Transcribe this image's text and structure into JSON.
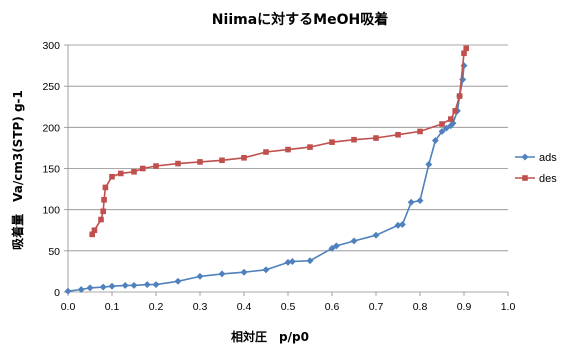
{
  "chart_data": {
    "type": "scatter",
    "title": "Niimaに対するMeOH吸着",
    "xlabel": "相対圧　p/p0",
    "ylabel": "吸着量　Va/cm3(STP) g-1",
    "xlim": [
      0,
      1.0
    ],
    "ylim": [
      0,
      300
    ],
    "x_ticks": [
      "0.0",
      "0.1",
      "0.2",
      "0.3",
      "0.4",
      "0.5",
      "0.6",
      "0.7",
      "0.8",
      "0.9",
      "1.0"
    ],
    "x_tick_values": [
      0,
      0.1,
      0.2,
      0.3,
      0.4,
      0.5,
      0.6,
      0.7,
      0.8,
      0.9,
      1.0
    ],
    "y_ticks": [
      "0",
      "50",
      "100",
      "150",
      "200",
      "250",
      "300"
    ],
    "y_tick_values": [
      0,
      50,
      100,
      150,
      200,
      250,
      300
    ],
    "grid": "horizontal",
    "legend_position": "right",
    "series": [
      {
        "name": "ads",
        "color": "#4f81bd",
        "marker": "diamond",
        "x": [
          0.0,
          0.03,
          0.05,
          0.08,
          0.1,
          0.13,
          0.15,
          0.18,
          0.2,
          0.25,
          0.3,
          0.35,
          0.4,
          0.45,
          0.5,
          0.51,
          0.55,
          0.6,
          0.61,
          0.65,
          0.7,
          0.75,
          0.76,
          0.78,
          0.8,
          0.82,
          0.835,
          0.85,
          0.86,
          0.87,
          0.875,
          0.885,
          0.89,
          0.897,
          0.9
        ],
        "y": [
          1,
          3,
          5,
          6,
          7,
          8,
          8,
          9,
          9,
          13,
          19,
          22,
          24,
          27,
          36,
          37,
          38,
          53,
          56,
          62,
          69,
          81,
          82,
          109,
          111,
          155,
          184,
          195,
          199,
          202,
          205,
          220,
          238,
          258,
          275
        ]
      },
      {
        "name": "des",
        "color": "#c0504d",
        "marker": "square",
        "x": [
          0.055,
          0.06,
          0.075,
          0.08,
          0.082,
          0.085,
          0.1,
          0.12,
          0.15,
          0.17,
          0.2,
          0.25,
          0.3,
          0.35,
          0.4,
          0.45,
          0.5,
          0.55,
          0.6,
          0.65,
          0.7,
          0.75,
          0.8,
          0.85,
          0.87,
          0.88,
          0.89,
          0.9,
          0.905
        ],
        "y": [
          70,
          75,
          88,
          98,
          112,
          127,
          140,
          144,
          146,
          150,
          153,
          156,
          158,
          160,
          163,
          170,
          173,
          176,
          182,
          185,
          187,
          191,
          195,
          204,
          210,
          220,
          238,
          290,
          296
        ]
      }
    ]
  }
}
